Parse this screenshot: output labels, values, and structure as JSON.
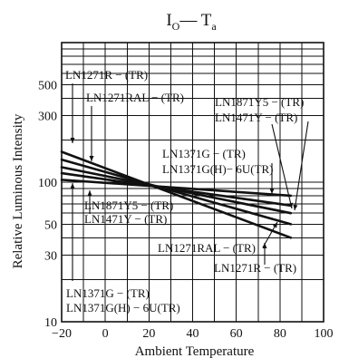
{
  "chart_data": {
    "type": "line",
    "title_main": "I",
    "title_sub": "O",
    "title_rest": "— T",
    "title_sub2": "a",
    "xlabel": "Ambient Temperature",
    "ylabel": "Relative Luminous Intensity",
    "xlim": [
      -20,
      100
    ],
    "ylim": [
      10,
      1000
    ],
    "yscale": "log",
    "grid": true,
    "x_ticks": [
      {
        "value": -20,
        "label": "−20"
      },
      {
        "value": 0,
        "label": "0"
      },
      {
        "value": 20,
        "label": "20"
      },
      {
        "value": 40,
        "label": "40"
      },
      {
        "value": 60,
        "label": "60"
      },
      {
        "value": 80,
        "label": "80"
      },
      {
        "value": 100,
        "label": "100"
      }
    ],
    "y_ticks": [
      {
        "value": 10,
        "label": "10"
      },
      {
        "value": 30,
        "label": "30"
      },
      {
        "value": 50,
        "label": "50"
      },
      {
        "value": 100,
        "label": "100"
      },
      {
        "value": 300,
        "label": "300"
      },
      {
        "value": 500,
        "label": "500"
      }
    ],
    "series": [
      {
        "x": [
          -20,
          85
        ],
        "y": [
          165,
          40
        ]
      },
      {
        "x": [
          -20,
          85
        ],
        "y": [
          145,
          50
        ]
      },
      {
        "x": [
          -20,
          85
        ],
        "y": [
          128,
          60
        ]
      },
      {
        "x": [
          -20,
          85
        ],
        "y": [
          116,
          68
        ]
      },
      {
        "x": [
          -20,
          85
        ],
        "y": [
          104,
          80
        ]
      }
    ],
    "annotations": [
      "LN1271R − (TR)",
      "LN1271RAL − (TR)",
      "LN1871Y5 − (TR)",
      "LN1471Y − (TR)",
      "LN1371G − (TR)",
      "LN1371G(H)− 6U(TR)",
      "LN1871Y5 − (TR)",
      "LN1471Y − (TR)",
      "LN1271RAL − (TR)",
      "LN1271R − (TR)",
      "LN1371G − (TR)",
      "LN1371G(H) − 6U(TR)"
    ]
  }
}
